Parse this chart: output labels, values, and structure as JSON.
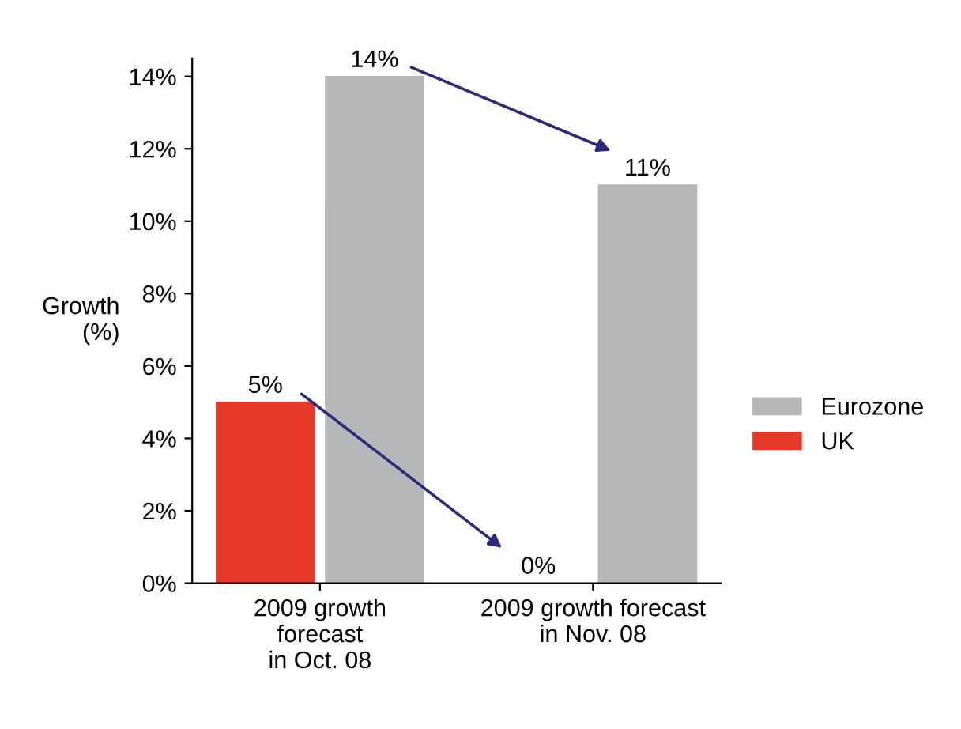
{
  "chart_data": {
    "type": "bar",
    "ylabel": "Growth\n(%)",
    "categories": [
      "2009 growth\nforecast\nin Oct. 08",
      "2009 growth forecast\nin Nov. 08"
    ],
    "series": [
      {
        "name": "UK",
        "color": "#e63828",
        "values": [
          5,
          0
        ],
        "value_labels": [
          "5%",
          "0%"
        ]
      },
      {
        "name": "Eurozone",
        "color": "#b5b7b9",
        "values": [
          14,
          11
        ],
        "value_labels": [
          "14%",
          "11%"
        ]
      }
    ],
    "ylim": [
      0,
      14.5
    ],
    "yticks": [
      {
        "value": 0,
        "label": "0%"
      },
      {
        "value": 2,
        "label": "2%"
      },
      {
        "value": 4,
        "label": "4%"
      },
      {
        "value": 6,
        "label": "6%"
      },
      {
        "value": 8,
        "label": "8%"
      },
      {
        "value": 10,
        "label": "10%"
      },
      {
        "value": 12,
        "label": "12%"
      },
      {
        "value": 14,
        "label": "14%"
      }
    ],
    "grid": false,
    "legend": "right"
  }
}
